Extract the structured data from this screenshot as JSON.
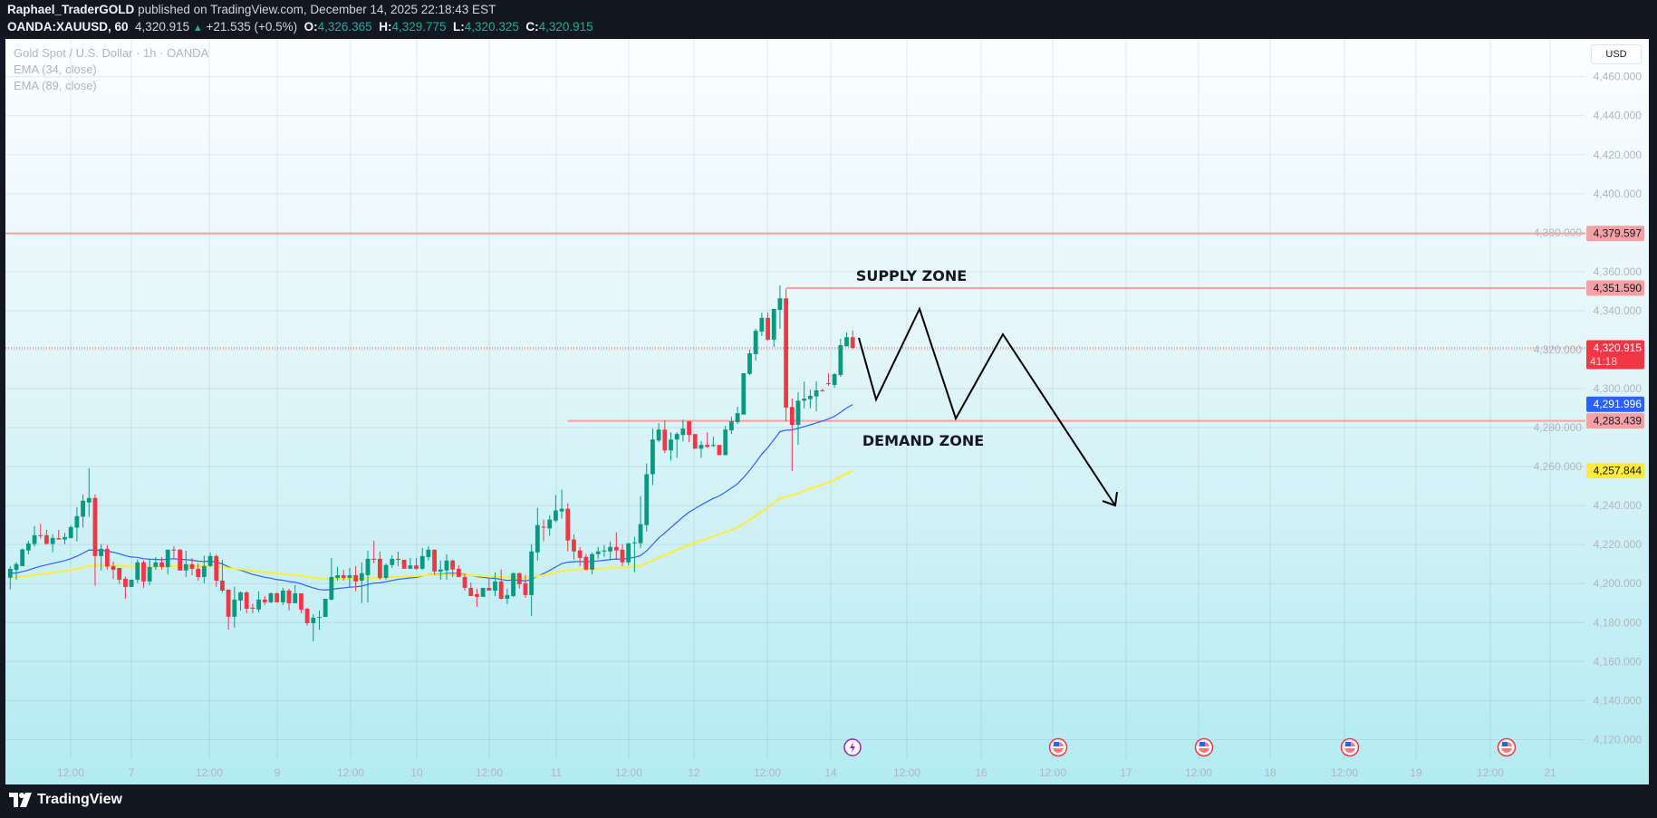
{
  "header": {
    "author": "Raphael_TraderGOLD",
    "published": "published on TradingView.com, December 14, 2025 22:18:43 EST",
    "symbol": "OANDA:XAUUSD, 60",
    "last": "4,320.915",
    "change": "+21.535 (+0.5%)",
    "o_label": "O:",
    "o": "4,326.365",
    "h_label": "H:",
    "h": "4,329.775",
    "l_label": "L:",
    "l": "4,320.325",
    "c_label": "C:",
    "c": "4,320.915"
  },
  "legend": {
    "title": "Gold Spot / U.S. Dollar · 1h · OANDA",
    "ema1": "EMA (34, close)",
    "ema2": "EMA (89, close)"
  },
  "currency_button": "USD",
  "footer": {
    "brand": "TradingView"
  },
  "colors": {
    "up": "#089981",
    "down": "#f23645",
    "ema34": "#2962ff",
    "ema89": "#ffeb3b",
    "zone": "#f7a1a5",
    "last_price": "#f23645"
  },
  "chart_data": {
    "type": "candlestick",
    "symbol": "XAUUSD",
    "interval": "1h",
    "ylim": [
      4110,
      4470
    ],
    "price_ticks": [
      "4,460.000",
      "4,440.000",
      "4,420.000",
      "4,400.000",
      "4,380.000",
      "4,360.000",
      "4,340.000",
      "4,320.000",
      "4,300.000",
      "4,280.000",
      "4,260.000",
      "4,240.000",
      "4,220.000",
      "4,200.000",
      "4,180.000",
      "4,160.000",
      "4,140.000",
      "4,120.000"
    ],
    "time_ticks": [
      "12:00",
      "7",
      "12:00",
      "9",
      "12:00",
      "10",
      "12:00",
      "11",
      "12:00",
      "12",
      "12:00",
      "14",
      "12:00",
      "16",
      "12:00",
      "17",
      "12:00",
      "18",
      "12:00",
      "19",
      "12:00",
      "21"
    ],
    "candles_ohlc": [
      [
        4203,
        4209,
        4197,
        4207.6
      ],
      [
        4207,
        4211,
        4202,
        4210
      ],
      [
        4209,
        4218,
        4209,
        4217.5
      ],
      [
        4217,
        4222,
        4215,
        4220.6
      ],
      [
        4220.3,
        4229.5,
        4219,
        4224.8
      ],
      [
        4224.8,
        4230.7,
        4223,
        4224.5
      ],
      [
        4224.8,
        4227.6,
        4220.3,
        4220.3
      ],
      [
        4220.3,
        4225.3,
        4216,
        4223.4
      ],
      [
        4223.3,
        4227.6,
        4222.6,
        4222.6
      ],
      [
        4222.6,
        4226,
        4220.3,
        4223.9
      ],
      [
        4223.4,
        4229.8,
        4223,
        4229
      ],
      [
        4228.7,
        4239.2,
        4221.7,
        4234.6
      ],
      [
        4234.3,
        4245.7,
        4228.7,
        4242.5
      ],
      [
        4241.6,
        4259.2,
        4234.3,
        4243.9
      ],
      [
        4243.9,
        4245.7,
        4198.9,
        4214.1
      ],
      [
        4214.1,
        4220.3,
        4206.7,
        4217.8
      ],
      [
        4217.8,
        4219.7,
        4207.1,
        4208.7
      ],
      [
        4209,
        4211.3,
        4202.3,
        4207.1
      ],
      [
        4208,
        4208,
        4199.7,
        4202
      ],
      [
        4202.5,
        4203.6,
        4192.2,
        4198.3
      ],
      [
        4198.3,
        4202,
        4198.3,
        4202
      ],
      [
        4202,
        4212.4,
        4200.3,
        4210.9
      ],
      [
        4210.9,
        4211.8,
        4197.8,
        4201.1
      ],
      [
        4201.1,
        4212.9,
        4199.2,
        4208.5
      ],
      [
        4208.5,
        4213.6,
        4207.1,
        4210.9
      ],
      [
        4210.9,
        4213.6,
        4207.1,
        4208.5
      ],
      [
        4208.5,
        4217.4,
        4204.8,
        4217.4
      ],
      [
        4217.4,
        4219.2,
        4212.4,
        4217
      ],
      [
        4217.4,
        4217.8,
        4206.7,
        4206.7
      ],
      [
        4206.7,
        4216.9,
        4203.4,
        4209.9
      ],
      [
        4209.9,
        4213.2,
        4204.3,
        4207.6
      ],
      [
        4207.6,
        4210.4,
        4201.5,
        4203.4
      ],
      [
        4203.4,
        4214.4,
        4200.2,
        4209
      ],
      [
        4209,
        4216,
        4208.5,
        4214.1
      ],
      [
        4214.1,
        4215,
        4198.3,
        4201.5
      ],
      [
        4201.5,
        4212.2,
        4195.5,
        4196.4
      ],
      [
        4196.9,
        4196.9,
        4176.4,
        4183
      ],
      [
        4183,
        4198.3,
        4177.4,
        4191.8
      ],
      [
        4191.3,
        4196,
        4186.2,
        4195.5
      ],
      [
        4195.5,
        4196,
        4184.8,
        4187.1
      ],
      [
        4187.6,
        4189.6,
        4184.8,
        4187.1
      ],
      [
        4186.7,
        4196,
        4185.3,
        4191.8
      ],
      [
        4191.8,
        4193.6,
        4189,
        4190.4
      ],
      [
        4190.4,
        4195.5,
        4190,
        4195
      ],
      [
        4195,
        4195.5,
        4190.4,
        4190.4
      ],
      [
        4190.4,
        4197.8,
        4189,
        4196.4
      ],
      [
        4196.4,
        4197.4,
        4186.2,
        4189.9
      ],
      [
        4189.9,
        4199.2,
        4189.9,
        4195
      ],
      [
        4195,
        4195,
        4184.8,
        4186.7
      ],
      [
        4187.1,
        4187.6,
        4178.3,
        4179.7
      ],
      [
        4179.7,
        4184.3,
        4170.4,
        4182.5
      ],
      [
        4182.5,
        4186.2,
        4176.4,
        4182.9
      ],
      [
        4182.9,
        4192.2,
        4182.9,
        4192.2
      ],
      [
        4191.8,
        4213.2,
        4191.3,
        4203.4
      ],
      [
        4202.9,
        4208.5,
        4201.5,
        4204.3
      ],
      [
        4204.3,
        4207.1,
        4201.5,
        4202.9
      ],
      [
        4202.9,
        4208,
        4198.3,
        4204.3
      ],
      [
        4204.3,
        4209,
        4196,
        4201.1
      ],
      [
        4201.5,
        4210.9,
        4190,
        4205.3
      ],
      [
        4204.3,
        4216.9,
        4190.4,
        4212.7
      ],
      [
        4212.7,
        4222,
        4210.4,
        4212.2
      ],
      [
        4212.7,
        4216.4,
        4202,
        4202.9
      ],
      [
        4202.9,
        4210.4,
        4202,
        4209.5
      ],
      [
        4209.5,
        4214.6,
        4208,
        4212.7
      ],
      [
        4212.7,
        4216.4,
        4209,
        4212.2
      ],
      [
        4212.2,
        4212.2,
        4207.6,
        4207.6
      ],
      [
        4207.6,
        4213.2,
        4207.6,
        4209.3
      ],
      [
        4209.3,
        4213.2,
        4207.1,
        4207.6
      ],
      [
        4207.6,
        4218.3,
        4207.1,
        4214.1
      ],
      [
        4213.6,
        4219.2,
        4211.8,
        4217.4
      ],
      [
        4217.4,
        4217.4,
        4204.4,
        4206.2
      ],
      [
        4206.2,
        4211.8,
        4202,
        4207.2
      ],
      [
        4206.7,
        4215.1,
        4202,
        4211.8
      ],
      [
        4211.8,
        4212.3,
        4203.4,
        4207.2
      ],
      [
        4207.6,
        4209.5,
        4203.4,
        4203.4
      ],
      [
        4203.4,
        4204.8,
        4196.4,
        4197.8
      ],
      [
        4197.8,
        4200.6,
        4193.6,
        4193.6
      ],
      [
        4194.6,
        4197.4,
        4188,
        4193.2
      ],
      [
        4193.2,
        4197.8,
        4193.2,
        4197.8
      ],
      [
        4197.8,
        4202.5,
        4196.4,
        4196.4
      ],
      [
        4196.4,
        4205.8,
        4193.6,
        4201.1
      ],
      [
        4201.1,
        4207.2,
        4191.8,
        4192.2
      ],
      [
        4192.2,
        4197.4,
        4189.4,
        4194.1
      ],
      [
        4193.6,
        4205.8,
        4193.2,
        4205.3
      ],
      [
        4205.3,
        4205.8,
        4197.4,
        4199.7
      ],
      [
        4200.2,
        4204.4,
        4192.7,
        4194.1
      ],
      [
        4194.1,
        4220.2,
        4183.4,
        4216.5
      ],
      [
        4216,
        4238.9,
        4211.8,
        4230
      ],
      [
        4229.2,
        4232.8,
        4221.8,
        4228.8
      ],
      [
        4228.3,
        4235.1,
        4224.6,
        4232.8
      ],
      [
        4232.3,
        4245.4,
        4231.4,
        4237.5
      ],
      [
        4237,
        4248.2,
        4233.3,
        4238.4
      ],
      [
        4238.4,
        4241.2,
        4216.5,
        4222.1
      ],
      [
        4222.6,
        4225.3,
        4212.3,
        4216.5
      ],
      [
        4217,
        4218.8,
        4209,
        4213.2
      ],
      [
        4213.7,
        4215.1,
        4206.7,
        4207.2
      ],
      [
        4207.2,
        4216,
        4204.8,
        4215.1
      ],
      [
        4215.1,
        4218.8,
        4212.8,
        4216.5
      ],
      [
        4216.5,
        4219.8,
        4213.7,
        4217
      ],
      [
        4216.5,
        4221.6,
        4211.8,
        4218.8
      ],
      [
        4218.8,
        4226.3,
        4212.8,
        4217
      ],
      [
        4217.4,
        4220.2,
        4209,
        4210.9
      ],
      [
        4210.9,
        4220.7,
        4209.5,
        4220.7
      ],
      [
        4220.7,
        4224,
        4205.8,
        4221.1
      ],
      [
        4220.7,
        4244.9,
        4218.3,
        4230.5
      ],
      [
        4230,
        4261.7,
        4226.8,
        4256.1
      ],
      [
        4256.1,
        4279.5,
        4250.6,
        4273.9
      ],
      [
        4273.4,
        4282.3,
        4272.5,
        4279
      ],
      [
        4279,
        4283.7,
        4266.9,
        4268.3
      ],
      [
        4268.3,
        4277.6,
        4263.1,
        4273.9
      ],
      [
        4273.9,
        4277.6,
        4264.5,
        4276.7
      ],
      [
        4276.2,
        4284.1,
        4272.9,
        4279.5
      ],
      [
        4283.2,
        4283.7,
        4272.5,
        4276.2
      ],
      [
        4276.7,
        4276.7,
        4269.2,
        4269.2
      ],
      [
        4269.2,
        4273,
        4264.5,
        4271.1
      ],
      [
        4271.1,
        4277.6,
        4269.7,
        4270.1
      ],
      [
        4270.6,
        4275.3,
        4270.1,
        4271.1
      ],
      [
        4271.1,
        4271.1,
        4265.9,
        4265.9
      ],
      [
        4265.9,
        4280.9,
        4265.9,
        4279
      ],
      [
        4278.6,
        4285.5,
        4276.7,
        4283.2
      ],
      [
        4282.8,
        4290.7,
        4281.8,
        4287.4
      ],
      [
        4286.7,
        4307.9,
        4286.7,
        4307.9
      ],
      [
        4307.6,
        4320,
        4307,
        4318.1
      ],
      [
        4317.7,
        4330.7,
        4314.4,
        4329.7
      ],
      [
        4329.3,
        4339,
        4327,
        4336.3
      ],
      [
        4336.3,
        4339,
        4324.6,
        4325.1
      ],
      [
        4325.1,
        4340.9,
        4321.4,
        4340.9
      ],
      [
        4340.4,
        4353,
        4330.7,
        4346.3
      ],
      [
        4346.3,
        4351.1,
        4283.3,
        4290.3
      ],
      [
        4290.6,
        4294.9,
        4257.7,
        4281.4
      ],
      [
        4281.4,
        4298.2,
        4271.2,
        4293.8
      ],
      [
        4293.8,
        4303.7,
        4289.8,
        4294.9
      ],
      [
        4294.6,
        4299.5,
        4289.8,
        4296.3
      ],
      [
        4296,
        4303.7,
        4288.4,
        4299.1
      ],
      [
        4299.1,
        4299.9,
        4298.5,
        4298.8
      ],
      [
        4302.8,
        4307.9,
        4301.4,
        4302.5
      ],
      [
        4301.9,
        4307.9,
        4300.5,
        4307.4
      ],
      [
        4307,
        4325.6,
        4306.1,
        4322.3
      ],
      [
        4321.7,
        4328.8,
        4321.7,
        4326.4
      ],
      [
        4326.365,
        4329.775,
        4320.325,
        4320.915
      ]
    ],
    "ema": [
      {
        "name": "EMA 34",
        "length": 34,
        "seed": 4205,
        "last": 4291.996
      },
      {
        "name": "EMA 89",
        "length": 89,
        "seed": 4203,
        "last": 4257.844
      }
    ],
    "horizontal_lines": [
      {
        "price": 4379.597,
        "label": "4,379.597",
        "from_bar": 0
      },
      {
        "price": 4351.59,
        "label": "4,351.590",
        "from_bar": 128
      },
      {
        "price": 4283.439,
        "label": "4,283.439",
        "from_bar": 92
      }
    ],
    "last_price": {
      "price": 4320.915,
      "label": "4,320.915",
      "countdown": "41:18"
    },
    "ema_labels": [
      "4,291.996",
      "4,257.844"
    ],
    "annotations": {
      "supply": "SUPPLY ZONE",
      "demand": "DEMAND ZONE"
    },
    "events": [
      "earnings-lightning",
      "us-economic",
      "us-economic",
      "us-economic",
      "us-economic"
    ]
  }
}
